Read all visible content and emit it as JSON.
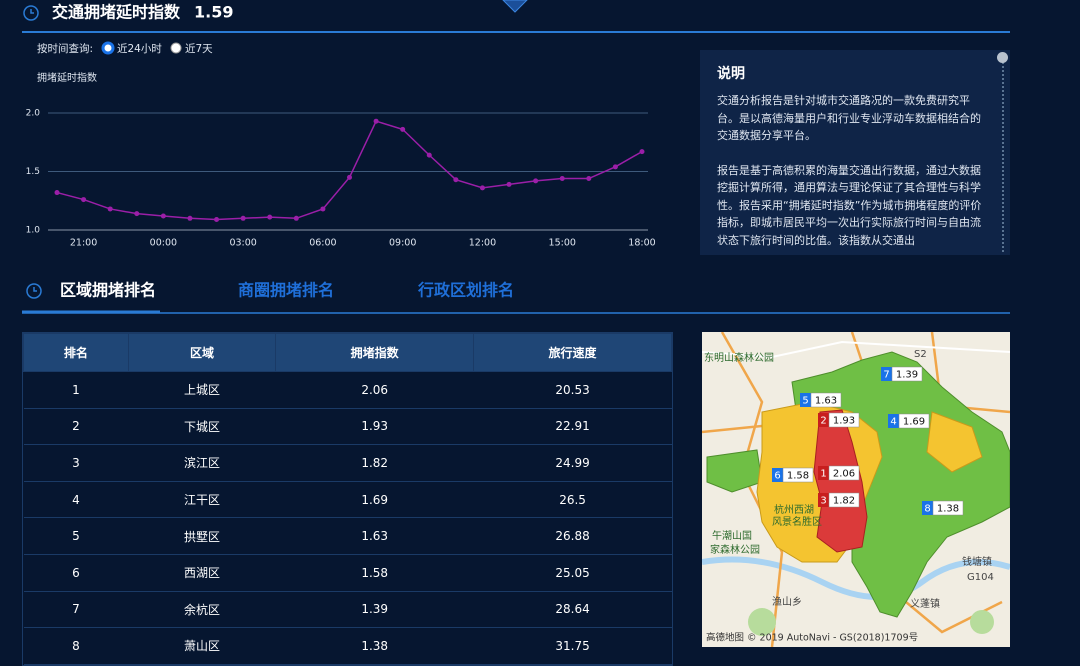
{
  "header": {
    "title": "交通拥堵延时指数",
    "value": "1.59"
  },
  "time_filter": {
    "label": "按时间查询:",
    "options": [
      "近24小时",
      "近7天"
    ],
    "selected": 0
  },
  "chart_data": {
    "type": "line",
    "y_label": "拥堵延时指数",
    "categories": [
      null,
      "21:00",
      null,
      null,
      "00:00",
      null,
      null,
      "03:00",
      null,
      null,
      "06:00",
      null,
      null,
      "09:00",
      null,
      null,
      "12:00",
      null,
      null,
      "15:00",
      null,
      null,
      "18:00"
    ],
    "values": [
      1.32,
      1.26,
      1.18,
      1.14,
      1.12,
      1.1,
      1.09,
      1.1,
      1.11,
      1.1,
      1.18,
      1.45,
      1.93,
      1.86,
      1.64,
      1.43,
      1.36,
      1.39,
      1.42,
      1.44,
      1.44,
      1.54,
      1.67
    ],
    "color": "#9b1fa8",
    "ylim": [
      1,
      2
    ],
    "yticks": [
      {
        "value": 1,
        "label": "1.0"
      },
      {
        "value": 1.5,
        "label": "1.5"
      },
      {
        "value": 2,
        "label": "2.0"
      }
    ],
    "grid": true
  },
  "info": {
    "title": "说明",
    "paragraphs": [
      "交通分析报告是针对城市交通路况的一款免费研究平台。是以高德海量用户和行业专业浮动车数据相结合的交通数据分享平台。",
      "报告是基于高德积累的海量交通出行数据，通过大数据挖掘计算所得，通用算法与理论保证了其合理性与科学性。报告采用“拥堵延时指数”作为城市拥堵程度的评价指标，即城市居民平均一次出行实际旅行时间与自由流状态下旅行时间的比值。该指数从交通出"
    ]
  },
  "tabs": {
    "items": [
      "区域拥堵排名",
      "商圈拥堵排名",
      "行政区划排名"
    ],
    "active": 0
  },
  "table": {
    "columns": [
      "排名",
      "区域",
      "拥堵指数",
      "旅行速度"
    ],
    "rows": [
      [
        "1",
        "上城区",
        "2.06",
        "20.53"
      ],
      [
        "2",
        "下城区",
        "1.93",
        "22.91"
      ],
      [
        "3",
        "滨江区",
        "1.82",
        "24.99"
      ],
      [
        "4",
        "江干区",
        "1.69",
        "26.5"
      ],
      [
        "5",
        "拱墅区",
        "1.63",
        "26.88"
      ],
      [
        "6",
        "西湖区",
        "1.58",
        "25.05"
      ],
      [
        "7",
        "余杭区",
        "1.39",
        "28.64"
      ],
      [
        "8",
        "萧山区",
        "1.38",
        "31.75"
      ]
    ]
  },
  "map": {
    "markers": [
      {
        "rank": "1",
        "value": "2.06"
      },
      {
        "rank": "2",
        "value": "1.93"
      },
      {
        "rank": "3",
        "value": "1.82"
      },
      {
        "rank": "4",
        "value": "1.69"
      },
      {
        "rank": "5",
        "value": "1.63"
      },
      {
        "rank": "6",
        "value": "1.58"
      },
      {
        "rank": "7",
        "value": "1.39"
      },
      {
        "rank": "8",
        "value": "1.38"
      }
    ],
    "places": [
      "东明山森林公园",
      "午潮山国",
      "家森林公园",
      "杭州西湖",
      "风景名胜区",
      "钱塘镇",
      "义蓬镇",
      "渔山乡",
      "G104",
      "S2"
    ],
    "attribution": "高德地图 © 2019 AutoNavi - GS(2018)1709号"
  }
}
